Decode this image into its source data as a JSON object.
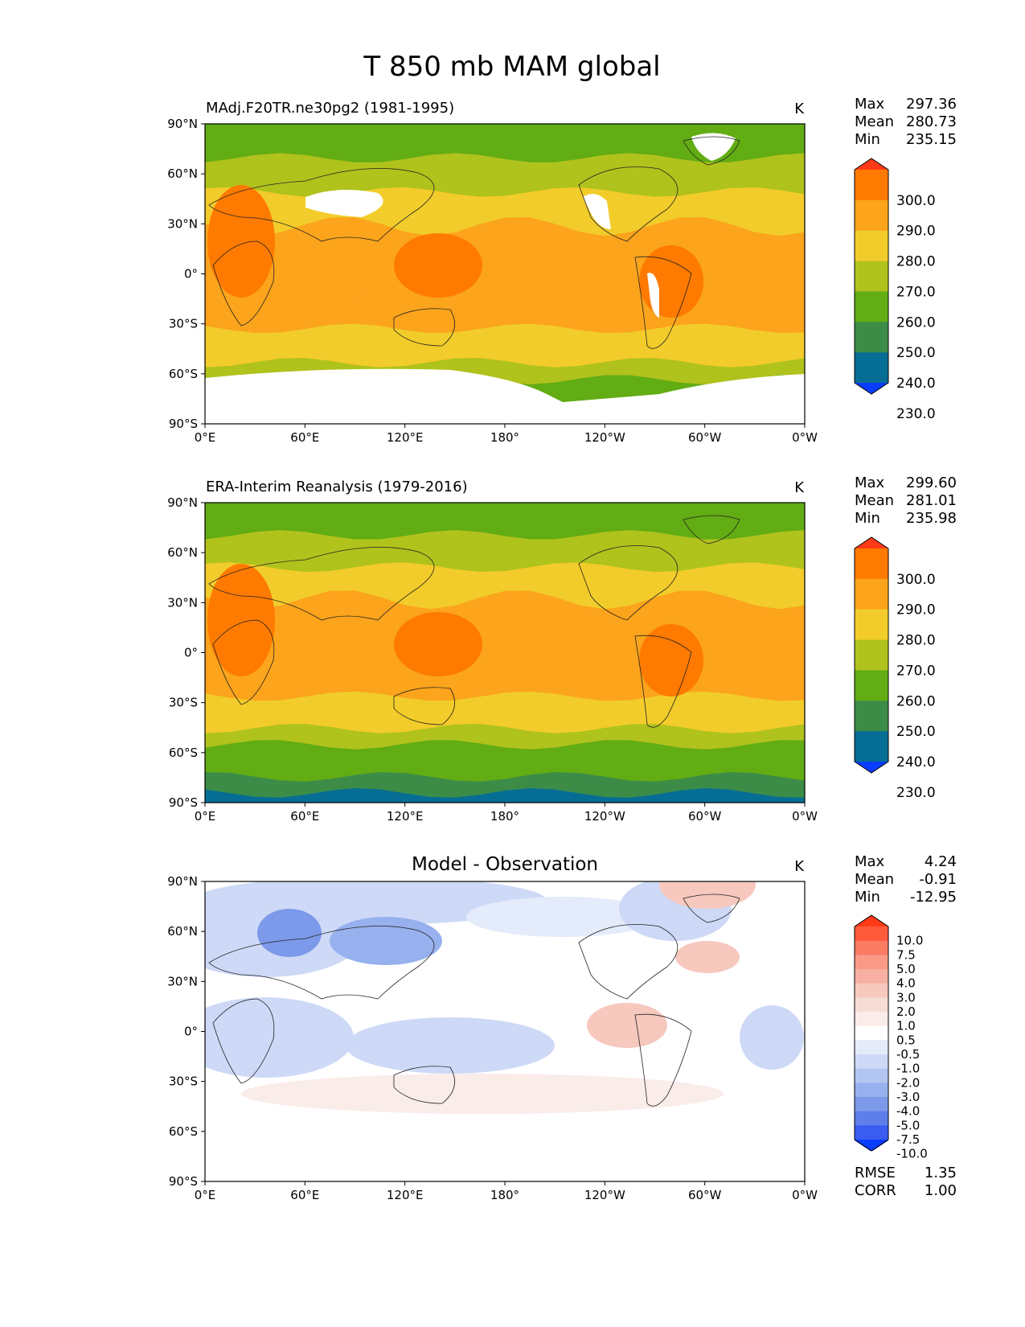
{
  "figure_title": "T 850 mb MAM global",
  "chart_data": [
    {
      "type": "heatmap",
      "title": "MAdj.F20TR.ne30pg2 (1981-1995)",
      "units": "K",
      "x_ticks": [
        "0°E",
        "60°E",
        "120°E",
        "180°",
        "120°W",
        "60°W",
        "0°W"
      ],
      "y_ticks": [
        "90°N",
        "60°N",
        "30°N",
        "0°",
        "30°S",
        "60°S",
        "90°S"
      ],
      "xlim": [
        0,
        360
      ],
      "ylim": [
        -90,
        90
      ],
      "stats": [
        {
          "name": "Max",
          "value": "297.36"
        },
        {
          "name": "Mean",
          "value": "280.73"
        },
        {
          "name": "Min",
          "value": "235.15"
        }
      ],
      "colorbar": {
        "levels": [
          "300.0",
          "290.0",
          "280.0",
          "270.0",
          "260.0",
          "250.0",
          "240.0",
          "230.0"
        ],
        "colors": [
          "#ff3a17",
          "#ff7a00",
          "#fba41c",
          "#f2cc2a",
          "#b0c21c",
          "#62ac14",
          "#3c8c48",
          "#066e94",
          "#0a3dff"
        ]
      },
      "zonal_band_values_K": [
        252,
        257,
        262,
        267,
        273,
        278,
        283,
        287,
        289,
        288,
        285,
        280,
        275,
        270,
        265,
        258,
        250
      ],
      "masked_regions": [
        "Tibetan Plateau",
        "Greenland",
        "Rocky Mountains",
        "Andes",
        "Antarctica"
      ]
    },
    {
      "type": "heatmap",
      "title": "ERA-Interim Reanalysis (1979-2016)",
      "units": "K",
      "x_ticks": [
        "0°E",
        "60°E",
        "120°E",
        "180°",
        "120°W",
        "60°W",
        "0°W"
      ],
      "y_ticks": [
        "90°N",
        "60°N",
        "30°N",
        "0°",
        "30°S",
        "60°S",
        "90°S"
      ],
      "xlim": [
        0,
        360
      ],
      "ylim": [
        -90,
        90
      ],
      "stats": [
        {
          "name": "Max",
          "value": "299.60"
        },
        {
          "name": "Mean",
          "value": "281.01"
        },
        {
          "name": "Min",
          "value": "235.98"
        }
      ],
      "colorbar": {
        "levels": [
          "300.0",
          "290.0",
          "280.0",
          "270.0",
          "260.0",
          "250.0",
          "240.0",
          "230.0"
        ],
        "colors": [
          "#ff3a17",
          "#ff7a00",
          "#fba41c",
          "#f2cc2a",
          "#b0c21c",
          "#62ac14",
          "#3c8c48",
          "#066e94",
          "#0a3dff"
        ]
      },
      "zonal_band_values_K": [
        252,
        257,
        262,
        267,
        273,
        278,
        283,
        287,
        289,
        288,
        285,
        280,
        275,
        270,
        265,
        258,
        252,
        243,
        237
      ]
    },
    {
      "type": "heatmap",
      "title": "Model - Observation",
      "units": "K",
      "x_ticks": [
        "0°E",
        "60°E",
        "120°E",
        "180°",
        "120°W",
        "60°W",
        "0°W"
      ],
      "y_ticks": [
        "90°N",
        "60°N",
        "30°N",
        "0°",
        "30°S",
        "60°S",
        "90°S"
      ],
      "xlim": [
        0,
        360
      ],
      "ylim": [
        -90,
        90
      ],
      "stats": [
        {
          "name": "Max",
          "value": "4.24"
        },
        {
          "name": "Mean",
          "value": "-0.91"
        },
        {
          "name": "Min",
          "value": "-12.95"
        }
      ],
      "colorbar": {
        "levels": [
          "10.0",
          "7.5",
          "5.0",
          "4.0",
          "3.0",
          "2.0",
          "1.0",
          "0.5",
          "-0.5",
          "-1.0",
          "-2.0",
          "-3.0",
          "-4.0",
          "-5.0",
          "-7.5",
          "-10.0"
        ],
        "colors": [
          "#ff3a17",
          "#fe5a3a",
          "#fb7a62",
          "#f99986",
          "#f7b1a3",
          "#f6c8be",
          "#f7dcd6",
          "#faece9",
          "#ffffff",
          "#e4ebfa",
          "#cdd9f6",
          "#b3c6f2",
          "#97b0ee",
          "#7c99ea",
          "#5e7eea",
          "#3a5cf0",
          "#0a3dff"
        ]
      },
      "error_stats": [
        {
          "name": "RMSE",
          "value": "1.35"
        },
        {
          "name": "CORR",
          "value": "1.00"
        }
      ]
    }
  ]
}
